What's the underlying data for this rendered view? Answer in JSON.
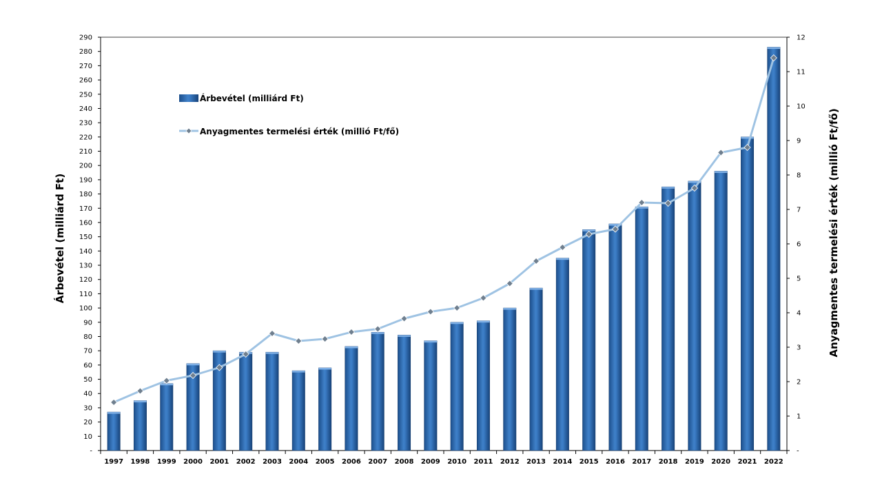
{
  "chart_data": {
    "type": "bar",
    "title": "",
    "categories": [
      "1997",
      "1998",
      "1999",
      "2000",
      "2001",
      "2002",
      "2003",
      "2004",
      "2005",
      "2006",
      "2007",
      "2008",
      "2009",
      "2010",
      "2011",
      "2012",
      "2013",
      "2014",
      "2015",
      "2016",
      "2017",
      "2018",
      "2019",
      "2020",
      "2021",
      "2022"
    ],
    "series": [
      {
        "name": "Árbevétel (milliárd Ft)",
        "type": "bar",
        "axis": "left",
        "color": "#2e6db4",
        "values": [
          27,
          35,
          47,
          61,
          70,
          69,
          69,
          56,
          58,
          73,
          83,
          81,
          77,
          90,
          91,
          100,
          114,
          135,
          155,
          159,
          171,
          185,
          189,
          196,
          220,
          283
        ]
      },
      {
        "name": "Anyagmentes termelési érték (millió Ft/fő)",
        "type": "line",
        "axis": "right",
        "color": "#9fc3e3",
        "marker_color": "#6f7f8f",
        "values": [
          1.4,
          1.73,
          2.03,
          2.18,
          2.41,
          2.8,
          3.4,
          3.18,
          3.24,
          3.44,
          3.53,
          3.83,
          4.03,
          4.14,
          4.43,
          4.85,
          5.5,
          5.9,
          6.28,
          6.43,
          7.2,
          7.18,
          7.62,
          8.65,
          8.8,
          11.4
        ]
      }
    ],
    "ylabel": "Árbevétel (milliárd Ft)",
    "y2label": "Anyagmentes termelési érték (millió Ft/fő)",
    "ylim": [
      0,
      290
    ],
    "y2lim": [
      0,
      12
    ],
    "yticks": [
      "-",
      "10",
      "20",
      "30",
      "40",
      "50",
      "60",
      "70",
      "80",
      "90",
      "100",
      "110",
      "120",
      "130",
      "140",
      "150",
      "160",
      "170",
      "180",
      "190",
      "200",
      "210",
      "220",
      "230",
      "240",
      "250",
      "260",
      "270",
      "280",
      "290"
    ],
    "y2ticks": [
      "-",
      "1",
      "2",
      "3",
      "4",
      "5",
      "6",
      "7",
      "8",
      "9",
      "10",
      "11",
      "12"
    ],
    "legend_position": "top-left",
    "grid": false
  }
}
